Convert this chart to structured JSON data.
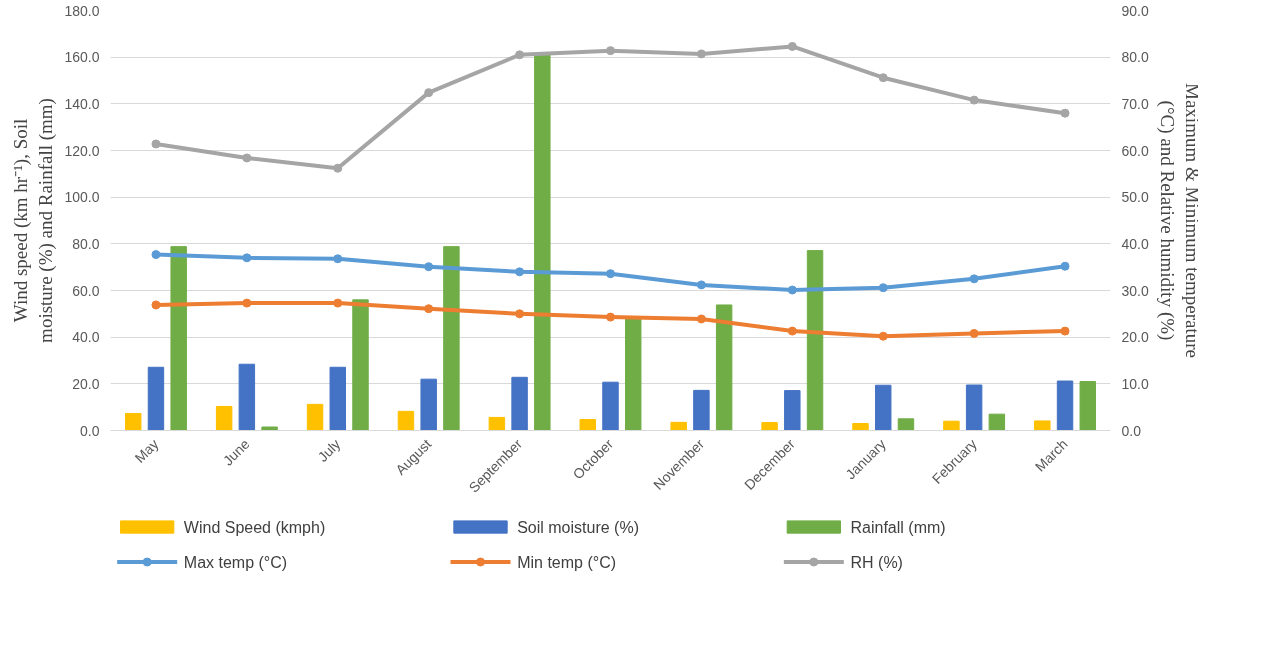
{
  "chart_data": {
    "type": "bar",
    "categories": [
      "May",
      "June",
      "July",
      "August",
      "September",
      "October",
      "November",
      "December",
      "January",
      "February",
      "March"
    ],
    "ylabel": "Wind speed (km hr⁻¹), Soil moisture (%) and Rainfall (mm)",
    "y2label": "Maximum & Minimum temperature (°C) and Relative humidity (%)",
    "ylim": [
      0,
      180
    ],
    "yticks": [
      {
        "value": 0,
        "label": "0.0"
      },
      {
        "value": 20,
        "label": "20.0"
      },
      {
        "value": 40,
        "label": "40.0"
      },
      {
        "value": 60,
        "label": "60.0"
      },
      {
        "value": 80,
        "label": "80.0"
      },
      {
        "value": 100,
        "label": "100.0"
      },
      {
        "value": 120,
        "label": "120.0"
      },
      {
        "value": 140,
        "label": "140.0"
      },
      {
        "value": 160,
        "label": "160.0"
      },
      {
        "value": 180,
        "label": "180.0"
      }
    ],
    "y2lim": [
      0,
      90
    ],
    "y2ticks": [
      {
        "value": 0,
        "label": "0.0"
      },
      {
        "value": 10,
        "label": "10.0"
      },
      {
        "value": 20,
        "label": "20.0"
      },
      {
        "value": 30,
        "label": "30.0"
      },
      {
        "value": 40,
        "label": "40.0"
      },
      {
        "value": 50,
        "label": "50.0"
      },
      {
        "value": 60,
        "label": "60.0"
      },
      {
        "value": 70,
        "label": "70.0"
      },
      {
        "value": 80,
        "label": "80.0"
      },
      {
        "value": 90,
        "label": "90.0"
      }
    ],
    "grid": "y",
    "legend": "bottom",
    "marker": "circle",
    "series": [
      {
        "name": "Wind Speed (kmph)",
        "color": "#ffc000",
        "values": [
          7.3,
          10.3,
          11.2,
          8.2,
          5.6,
          4.7,
          3.5,
          3.4,
          3.0,
          4.0,
          4.1
        ]
      },
      {
        "name": "Soil moisture (%)",
        "color": "#4472c4",
        "values": [
          27.1,
          28.4,
          27.1,
          22.0,
          22.8,
          20.7,
          17.2,
          17.1,
          19.4,
          19.5,
          21.2
        ]
      },
      {
        "name": "Rainfall (mm)",
        "color": "#70ad47",
        "values": [
          78.8,
          1.5,
          56.0,
          78.8,
          161,
          47.8,
          53.8,
          77.1,
          5.0,
          7.0,
          21.0
        ]
      },
      {
        "name": "Max temp (°C)",
        "color": "#5b9bd5",
        "type": "line",
        "axis": "y2",
        "values": [
          37.7,
          37.0,
          36.8,
          35.1,
          34.0,
          33.6,
          31.2,
          30.1,
          30.6,
          32.5,
          35.2
        ]
      },
      {
        "name": "Min temp (°C)",
        "color": "#ed7d31",
        "type": "line",
        "axis": "y2",
        "values": [
          26.9,
          27.3,
          27.3,
          26.1,
          25.0,
          24.3,
          23.9,
          21.3,
          20.2,
          20.8,
          21.3
        ]
      },
      {
        "name": "RH (%)",
        "color": "#a5a5a5",
        "type": "line",
        "axis": "y2",
        "values": [
          61.4,
          58.4,
          56.2,
          72.4,
          80.5,
          81.4,
          80.7,
          82.3,
          75.6,
          70.8,
          68.0
        ]
      }
    ]
  }
}
